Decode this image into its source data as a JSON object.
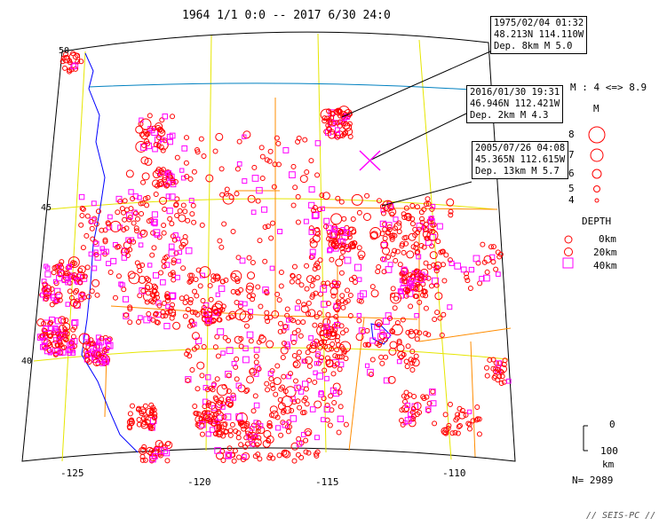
{
  "title": "1964 1/1 0:0 -- 2017 6/30 24:0",
  "callouts": [
    {
      "lines": [
        "1975/02/04 01:32",
        "48.213N  114.110W",
        "Dep. 8km   M 5.0"
      ]
    },
    {
      "lines": [
        "2016/01/30 19:31",
        "46.946N  112.421W",
        "Dep. 2km   M 4.3"
      ]
    },
    {
      "lines": [
        "2005/07/26 04:08",
        "45.365N  112.615W",
        "Dep. 13km   M 5.7"
      ]
    }
  ],
  "lat_labels": [
    "50",
    "45",
    "40"
  ],
  "lon_labels": [
    "-125",
    "-120",
    "-115",
    "-110"
  ],
  "magnitude_legend": {
    "range_text": "M : 4 <=> 8.9",
    "title": "M",
    "values": [
      "8",
      "7",
      "6",
      "5",
      "4"
    ]
  },
  "depth_legend": {
    "title": "DEPTH",
    "entries": [
      "0km",
      "20km",
      "40km"
    ]
  },
  "depth_scale": {
    "top": "0",
    "bottom": "100",
    "unit": "km"
  },
  "count_text": "N= 2989",
  "footer": "// SEIS-PC //",
  "colors": {
    "shallow": "#ff0000",
    "deep": "#ff00ff",
    "grid": "#e6e600",
    "coast": "#0000ff",
    "border": "#ff8c00",
    "canada": "#0080c0"
  }
}
